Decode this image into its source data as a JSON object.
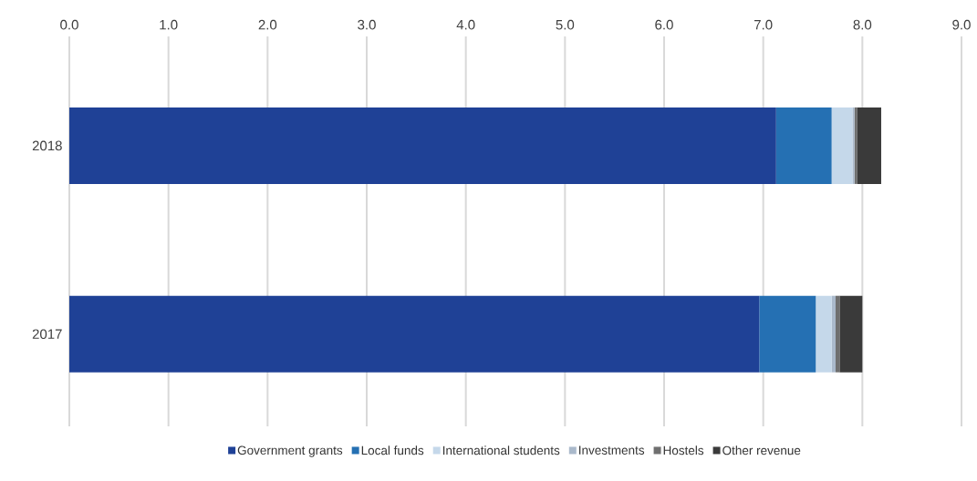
{
  "chart_data": {
    "type": "bar",
    "orientation": "horizontal",
    "stacked": true,
    "categories": [
      "2018",
      "2017"
    ],
    "series": [
      {
        "name": "Government grants",
        "color": "#1f4196",
        "values": [
          7.13,
          6.96
        ]
      },
      {
        "name": "Local funds",
        "color": "#2570b3",
        "values": [
          0.56,
          0.57
        ]
      },
      {
        "name": "International students",
        "color": "#c5d8ea",
        "values": [
          0.21,
          0.16
        ]
      },
      {
        "name": "Investments",
        "color": "#aab9cb",
        "values": [
          0.02,
          0.04
        ]
      },
      {
        "name": "Hostels",
        "color": "#6f6f6f",
        "values": [
          0.03,
          0.04
        ]
      },
      {
        "name": "Other revenue",
        "color": "#3a3a3a",
        "values": [
          0.24,
          0.23
        ]
      }
    ],
    "xlim": [
      0,
      9
    ],
    "xticks": [
      {
        "value": 0,
        "label": "0.0"
      },
      {
        "value": 1,
        "label": "1.0"
      },
      {
        "value": 2,
        "label": "2.0"
      },
      {
        "value": 3,
        "label": "3.0"
      },
      {
        "value": 4,
        "label": "4.0"
      },
      {
        "value": 5,
        "label": "5.0"
      },
      {
        "value": 6,
        "label": "6.0"
      },
      {
        "value": 7,
        "label": "7.0"
      },
      {
        "value": 8,
        "label": "8.0"
      },
      {
        "value": 9,
        "label": "9.0"
      }
    ],
    "grid": "x",
    "legend": "bottom"
  }
}
